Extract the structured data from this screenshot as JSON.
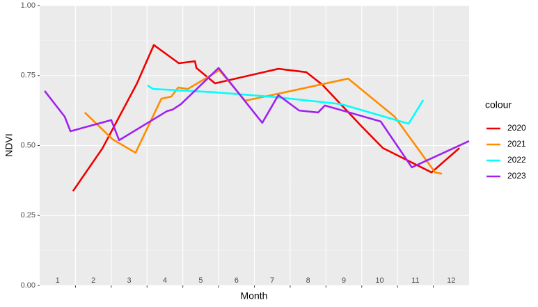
{
  "chart_data": {
    "type": "line",
    "x_label": "Month",
    "y_label": "NDVI",
    "legend_title": "colour",
    "legend": "right",
    "xlim": [
      0.5,
      12.5
    ],
    "xticks": [
      1.5,
      2.5,
      3.5,
      4.5,
      5.5,
      6.5,
      7.5,
      8.5,
      9.5,
      10.5,
      11.5
    ],
    "month_labels": [
      1,
      2,
      3,
      4,
      5,
      6,
      7,
      8,
      9,
      10,
      11,
      12
    ],
    "ylim": [
      0,
      1
    ],
    "yticks": [
      {
        "value": 0,
        "label": "0.00"
      },
      {
        "value": 0.25,
        "label": "0.25"
      },
      {
        "value": 0.5,
        "label": "0.50"
      },
      {
        "value": 0.75,
        "label": "0.75"
      },
      {
        "value": 1,
        "label": "1.00"
      }
    ],
    "grid": true,
    "series": [
      {
        "name": "2020",
        "color": "#ee0000",
        "x": [
          1.43,
          2.25,
          3.22,
          3.69,
          4.39,
          4.84,
          4.88,
          5.4,
          7.17,
          7.95,
          8.4,
          9.5,
          10.09,
          11.45,
          12.23
        ],
        "values": [
          0.337,
          0.489,
          0.722,
          0.859,
          0.794,
          0.801,
          0.777,
          0.722,
          0.774,
          0.762,
          0.717,
          0.568,
          0.491,
          0.404,
          0.491
        ]
      },
      {
        "name": "2021",
        "color": "#ff8c00",
        "x": [
          1.76,
          2.54,
          3.18,
          3.9,
          4.18,
          4.37,
          4.64,
          5.52,
          6.24,
          7.17,
          9.12,
          10.42,
          11.55,
          11.74
        ],
        "values": [
          0.618,
          0.522,
          0.474,
          0.667,
          0.675,
          0.707,
          0.702,
          0.769,
          0.66,
          0.685,
          0.739,
          0.603,
          0.404,
          0.399
        ]
      },
      {
        "name": "2022",
        "color": "#00ffff",
        "x": [
          3.51,
          3.67,
          5.42,
          7.17,
          8.92,
          10.81,
          11.22
        ],
        "values": [
          0.715,
          0.702,
          0.69,
          0.672,
          0.648,
          0.578,
          0.663
        ]
      },
      {
        "name": "2023",
        "color": "#a020f0",
        "x": [
          0.64,
          1.2,
          1.36,
          2.5,
          2.72,
          4.06,
          4.21,
          4.45,
          5.5,
          6.72,
          7.17,
          7.75,
          8.28,
          8.47,
          10.03,
          10.9,
          12.5
        ],
        "values": [
          0.695,
          0.603,
          0.551,
          0.591,
          0.519,
          0.623,
          0.628,
          0.648,
          0.777,
          0.581,
          0.68,
          0.625,
          0.618,
          0.643,
          0.586,
          0.422,
          0.516
        ]
      }
    ]
  }
}
